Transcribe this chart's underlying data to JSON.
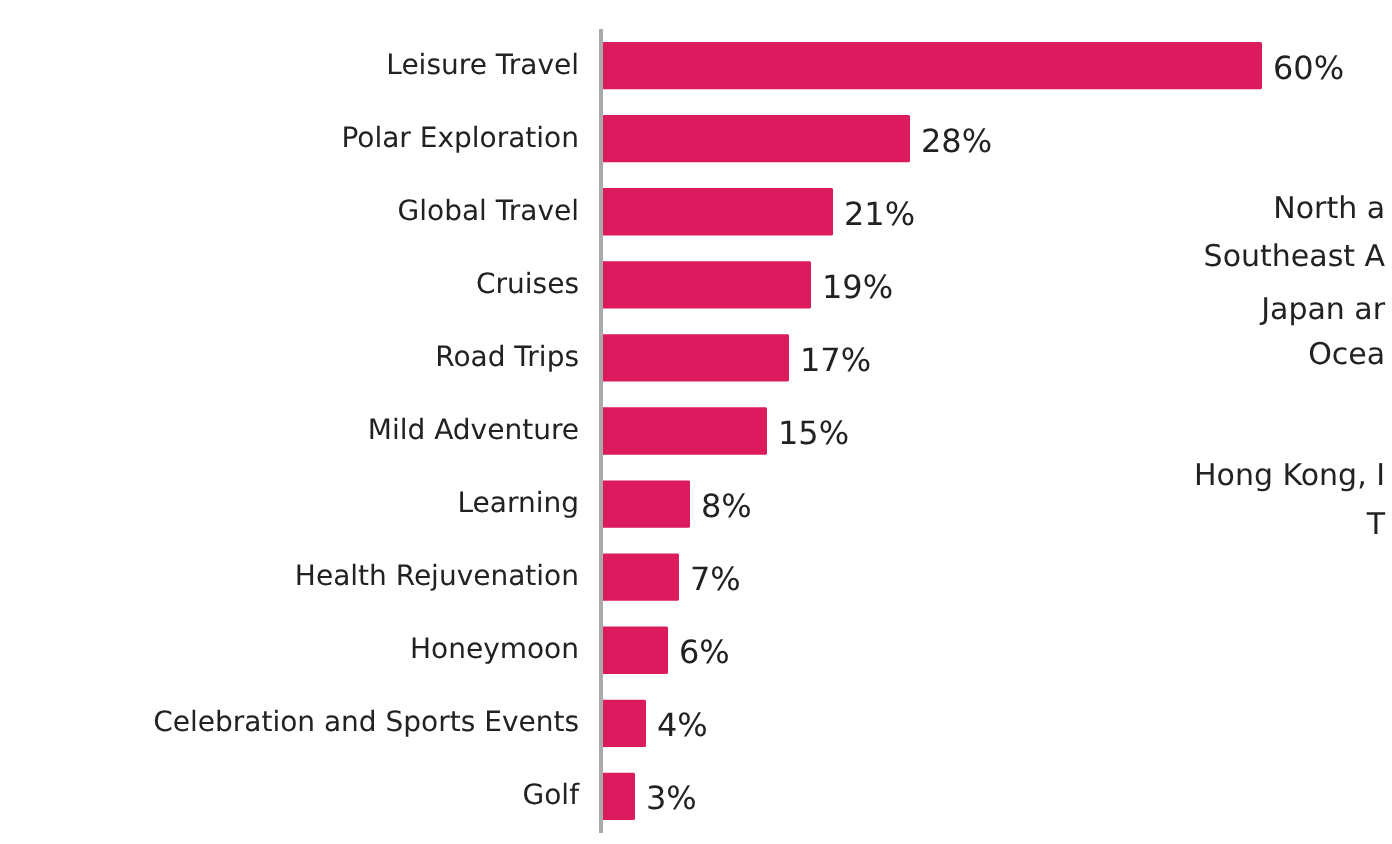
{
  "chart_data": {
    "type": "bar",
    "orientation": "horizontal",
    "categories": [
      "Leisure Travel",
      "Polar Exploration",
      "Global Travel",
      "Cruises",
      "Road Trips",
      "Mild Adventure",
      "Learning",
      "Health Rejuvenation",
      "Honeymoon",
      "Celebration and Sports Events",
      "Golf"
    ],
    "values": [
      60,
      28,
      21,
      19,
      17,
      15,
      8,
      7,
      6,
      4,
      3
    ],
    "value_labels": [
      "60%",
      "28%",
      "21%",
      "19%",
      "17%",
      "15%",
      "8%",
      "7%",
      "6%",
      "4%",
      "3%"
    ],
    "color": "#dc1a5e",
    "grid": false,
    "annotations": [
      "North a",
      "Southeast A",
      "Japan ar",
      "Ocea",
      "Hong Kong, I",
      "T"
    ]
  }
}
